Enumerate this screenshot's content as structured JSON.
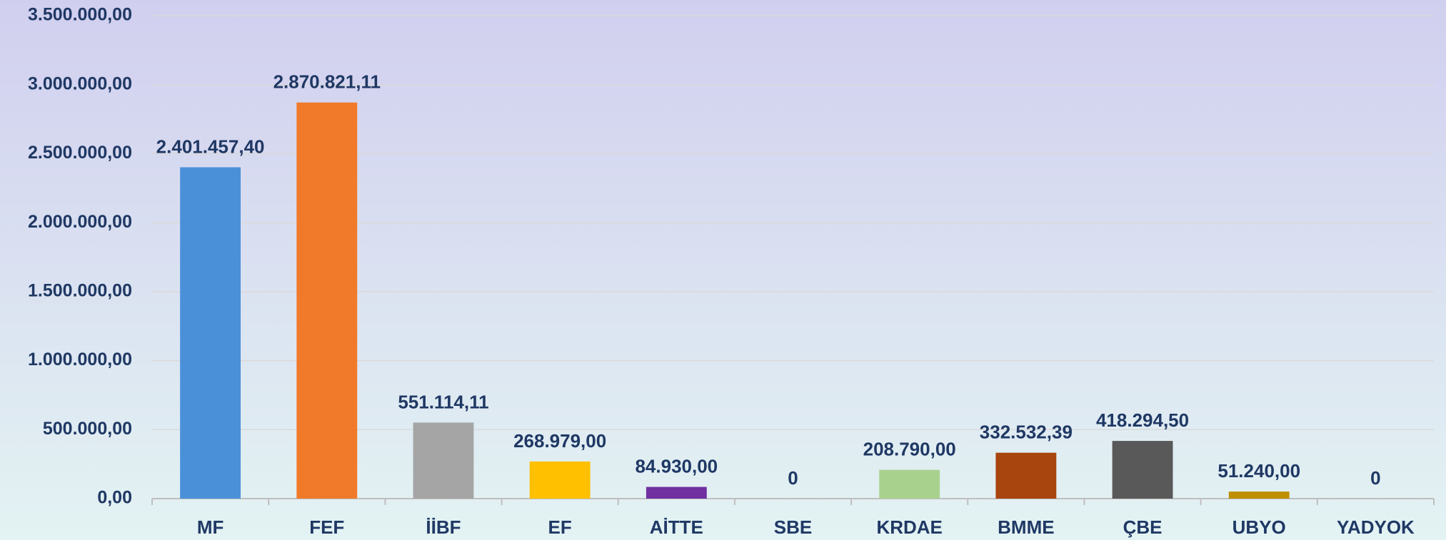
{
  "chart_data": {
    "type": "bar",
    "categories": [
      "MF",
      "FEF",
      "İİBF",
      "EF",
      "AİTTE",
      "SBE",
      "KRDAE",
      "BMME",
      "ÇBE",
      "UBYO",
      "YADYOK"
    ],
    "values": [
      2401457.4,
      2870821.11,
      551114.11,
      268979.0,
      84930.0,
      0,
      208790.0,
      332532.39,
      418294.5,
      51240.0,
      0
    ],
    "value_labels": [
      "2.401.457,40",
      "2.870.821,11",
      "551.114,11",
      "268.979,00",
      "84.930,00",
      "0",
      "208.790,00",
      "332.532,39",
      "418.294,50",
      "51.240,00",
      "0"
    ],
    "colors": [
      "#4a90d9",
      "#f07a2a",
      "#a5a5a5",
      "#ffc000",
      "#7030a0",
      "#4472c4",
      "#a9d18e",
      "#a8440e",
      "#595959",
      "#bf8f00",
      "#5b9bd5"
    ],
    "ylim": [
      0,
      3500000
    ],
    "yticks": [
      {
        "value": 0,
        "label": "0,00"
      },
      {
        "value": 500000,
        "label": "500.000,00"
      },
      {
        "value": 1000000,
        "label": "1.000.000,00"
      },
      {
        "value": 1500000,
        "label": "1.500.000,00"
      },
      {
        "value": 2000000,
        "label": "2.000.000,00"
      },
      {
        "value": 2500000,
        "label": "2.500.000,00"
      },
      {
        "value": 3000000,
        "label": "3.000.000,00"
      },
      {
        "value": 3500000,
        "label": "3.500.000,00"
      }
    ],
    "grid": true
  }
}
